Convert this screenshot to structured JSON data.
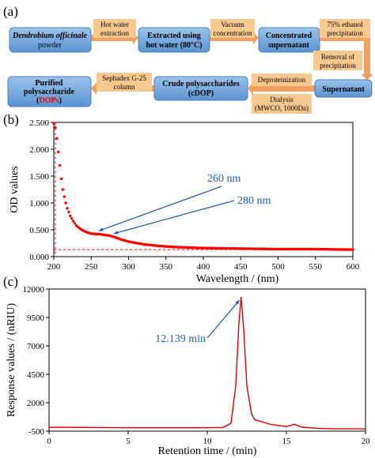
{
  "panel_labels": {
    "a": "(a)",
    "b": "(b)",
    "c": "(c)"
  },
  "flow": {
    "nodes": [
      {
        "id": "powder",
        "line1": "Dendrobium officinale",
        "line2": "powder",
        "line1_italic": true
      },
      {
        "id": "extracted",
        "line1": "Extracted using",
        "line2": "hot water (80°C)"
      },
      {
        "id": "concentrated",
        "line1": "Concentrated",
        "line2": "supernatant"
      },
      {
        "id": "supernatant",
        "line1": "Supernatant",
        "line2": ""
      },
      {
        "id": "crude",
        "line1": "Crude polysaccharides",
        "line2": "(cDOP)"
      },
      {
        "id": "purified",
        "line1": "Purified",
        "line2": "polysaccharide",
        "line3_open": "(",
        "line3_red": "DOPs",
        "line3_close": ")"
      }
    ],
    "steps": [
      {
        "id": "hot-water-extraction",
        "line1": "Hot water",
        "line2": "extraction"
      },
      {
        "id": "vacuum-concentration",
        "line1": "Vacuum",
        "line2": "concentration"
      },
      {
        "id": "ethanol-precipitation",
        "line1": "75% ethanol",
        "line2": "precipitation"
      },
      {
        "id": "removal-precipitation",
        "line1": "Removal of",
        "line2": "precipitation"
      },
      {
        "id": "deproteinization",
        "line1": "Deproteinization",
        "line2": ""
      },
      {
        "id": "dialysis",
        "line1": "Dialysis",
        "line2": "(MWCO, 1000Da)"
      },
      {
        "id": "sephadex",
        "line1": "Sephadex G-25",
        "line2": "column"
      }
    ],
    "colors": {
      "node": "#5b9bd5",
      "step": "#f4c48f",
      "arrow": "#f0a060",
      "red": "#ff0000"
    }
  },
  "chart_data": [
    {
      "type": "scatter",
      "xlabel": "Wavelength / (nm)",
      "ylabel": "OD values",
      "xlim": [
        200,
        600
      ],
      "ylim": [
        0,
        2.5
      ],
      "xticks": [
        "200",
        "250",
        "300",
        "350",
        "400",
        "450",
        "500",
        "550",
        "600"
      ],
      "yticks": [
        "0.000",
        "0.500",
        "1.000",
        "1.500",
        "2.000",
        "2.500"
      ],
      "annotations": [
        {
          "text": "260 nm",
          "x": 260,
          "y": 0.42
        },
        {
          "text": "280 nm",
          "x": 280,
          "y": 0.37
        }
      ],
      "color": "#ff0000",
      "annotation_color": "#1f5fb8",
      "series": [
        {
          "x": [
            200,
            202,
            204,
            206,
            208,
            210,
            212,
            215,
            218,
            222,
            226,
            230,
            235,
            240,
            245,
            250,
            255,
            260,
            265,
            270,
            275,
            280,
            290,
            300,
            320,
            340,
            360,
            380,
            400,
            450,
            500,
            550,
            600
          ],
          "y": [
            2.48,
            2.4,
            2.2,
            1.95,
            1.7,
            1.45,
            1.25,
            1.05,
            0.9,
            0.76,
            0.66,
            0.58,
            0.52,
            0.48,
            0.45,
            0.43,
            0.42,
            0.42,
            0.41,
            0.4,
            0.39,
            0.37,
            0.32,
            0.28,
            0.23,
            0.2,
            0.18,
            0.17,
            0.16,
            0.15,
            0.14,
            0.14,
            0.13
          ]
        }
      ]
    },
    {
      "type": "line",
      "xlabel": "Retention time / (min)",
      "ylabel": "Response values / (nRIU)",
      "xlim": [
        0,
        20
      ],
      "ylim": [
        -500,
        12000
      ],
      "xticks": [
        "0",
        "5",
        "10",
        "15",
        "20"
      ],
      "yticks": [
        "-500",
        "2000",
        "4500",
        "7000",
        "9500",
        "12000"
      ],
      "annotations": [
        {
          "text": "12.139 min",
          "x": 12.139,
          "y": 11300
        }
      ],
      "color": "#e00000",
      "annotation_color": "#1f5fb8",
      "series": [
        {
          "x": [
            0,
            5,
            9,
            10,
            11,
            11.5,
            11.8,
            12.0,
            12.139,
            12.3,
            12.5,
            12.8,
            13.0,
            13.5,
            14.0,
            14.5,
            15.0,
            15.5,
            16.0,
            17.0,
            18.0,
            20.0
          ],
          "y": [
            -150,
            -200,
            -200,
            -200,
            -180,
            200,
            3500,
            9000,
            11300,
            8500,
            3500,
            1000,
            500,
            300,
            100,
            0,
            -100,
            100,
            -150,
            -250,
            -300,
            -300
          ]
        }
      ]
    }
  ]
}
